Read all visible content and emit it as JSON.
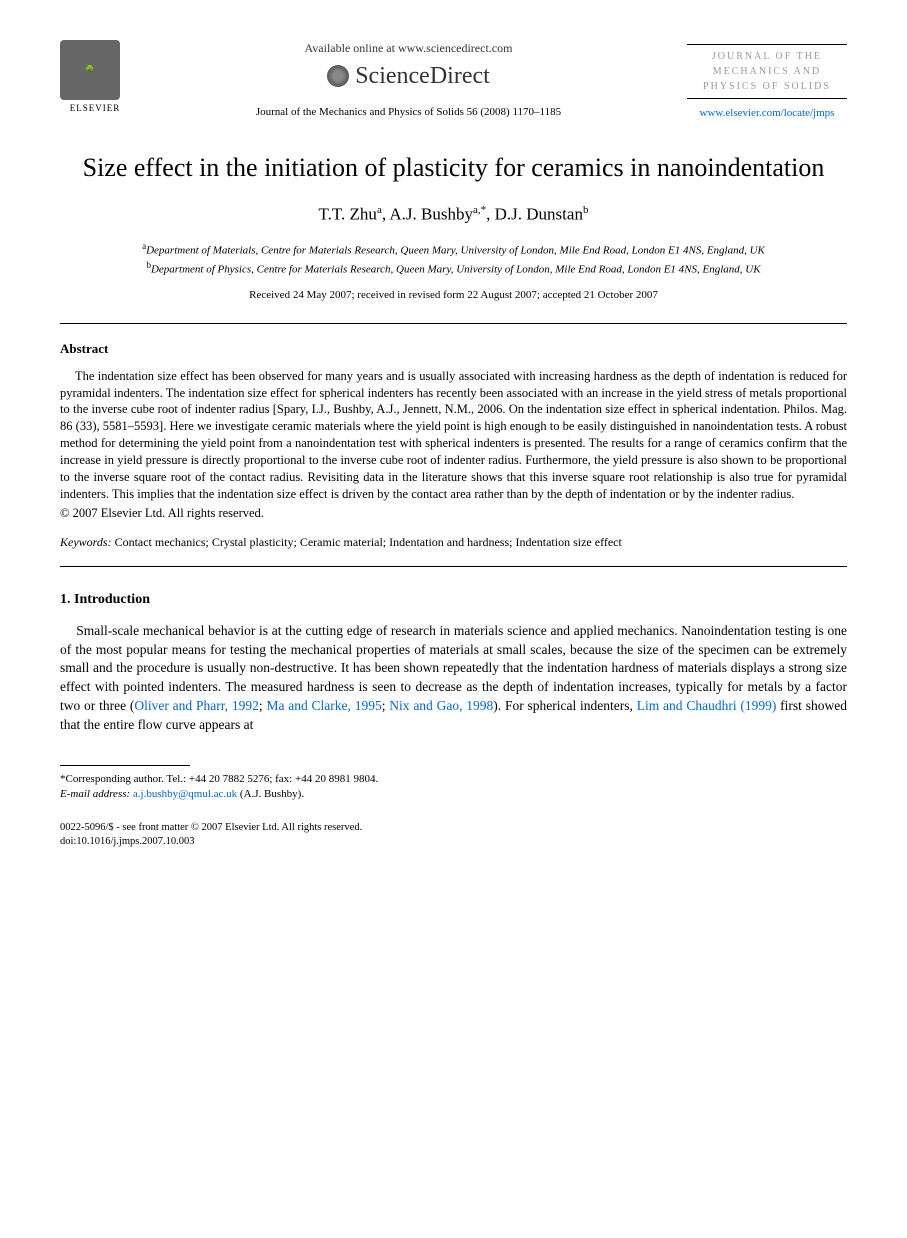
{
  "header": {
    "publisher_logo_label": "ELSEVIER",
    "available_text": "Available online at www.sciencedirect.com",
    "platform_name": "ScienceDirect",
    "citation": "Journal of the Mechanics and Physics of Solids 56 (2008) 1170–1185",
    "journal_name_line1": "JOURNAL OF THE",
    "journal_name_line2": "MECHANICS AND",
    "journal_name_line3": "PHYSICS OF SOLIDS",
    "journal_url": "www.elsevier.com/locate/jmps"
  },
  "article": {
    "title": "Size effect in the initiation of plasticity for ceramics in nanoindentation",
    "authors_html": "T.T. Zhu<sup>a</sup>, A.J. Bushby<sup>a,*</sup>, D.J. Dunstan<sup>b</sup>",
    "affiliation_a": "Department of Materials, Centre for Materials Research, Queen Mary, University of London, Mile End Road, London E1 4NS, England, UK",
    "affiliation_b": "Department of Physics, Centre for Materials Research, Queen Mary, University of London, Mile End Road, London E1 4NS, England, UK",
    "dates": "Received 24 May 2007; received in revised form 22 August 2007; accepted 21 October 2007"
  },
  "abstract": {
    "heading": "Abstract",
    "body": "The indentation size effect has been observed for many years and is usually associated with increasing hardness as the depth of indentation is reduced for pyramidal indenters. The indentation size effect for spherical indenters has recently been associated with an increase in the yield stress of metals proportional to the inverse cube root of indenter radius [Spary, I.J., Bushby, A.J., Jennett, N.M., 2006. On the indentation size effect in spherical indentation. Philos. Mag. 86 (33), 5581–5593]. Here we investigate ceramic materials where the yield point is high enough to be easily distinguished in nanoindentation tests. A robust method for determining the yield point from a nanoindentation test with spherical indenters is presented. The results for a range of ceramics confirm that the increase in yield pressure is directly proportional to the inverse cube root of indenter radius. Furthermore, the yield pressure is also shown to be proportional to the inverse square root of the contact radius. Revisiting data in the literature shows that this inverse square root relationship is also true for pyramidal indenters. This implies that the indentation size effect is driven by the contact area rather than by the depth of indentation or by the indenter radius.",
    "copyright": "© 2007 Elsevier Ltd. All rights reserved."
  },
  "keywords": {
    "label": "Keywords:",
    "text": "Contact mechanics; Crystal plasticity; Ceramic material; Indentation and hardness; Indentation size effect"
  },
  "introduction": {
    "heading": "1. Introduction",
    "para1_pre": "Small-scale mechanical behavior is at the cutting edge of research in materials science and applied mechanics. Nanoindentation testing is one of the most popular means for testing the mechanical properties of materials at small scales, because the size of the specimen can be extremely small and the procedure is usually non-destructive. It has been shown repeatedly that the indentation hardness of materials displays a strong size effect with pointed indenters. The measured hardness is seen to decrease as the depth of indentation increases, typically for metals by a factor two or three (",
    "ref1": "Oliver and Pharr, 1992",
    "sep1": "; ",
    "ref2": "Ma and Clarke, 1995",
    "sep2": "; ",
    "ref3": "Nix and Gao, 1998",
    "para1_mid": "). For spherical indenters, ",
    "ref4": "Lim and Chaudhri (1999)",
    "para1_post": " first showed that the entire flow curve appears at"
  },
  "footnote": {
    "corresponding": "Corresponding author. Tel.: +44 20 7882 5276; fax: +44 20 8981 9804.",
    "email_label": "E-mail address:",
    "email": "a.j.bushby@qmul.ac.uk",
    "email_attribution": "(A.J. Bushby)."
  },
  "footer": {
    "line1": "0022-5096/$ - see front matter © 2007 Elsevier Ltd. All rights reserved.",
    "doi": "doi:10.1016/j.jmps.2007.10.003"
  },
  "colors": {
    "link": "#0066cc",
    "text": "#000000",
    "background": "#ffffff",
    "faded": "#999999"
  },
  "typography": {
    "body_font": "Times New Roman",
    "title_size_pt": 26,
    "author_size_pt": 17,
    "body_size_pt": 13.5,
    "abstract_size_pt": 12.5,
    "footnote_size_pt": 11
  }
}
